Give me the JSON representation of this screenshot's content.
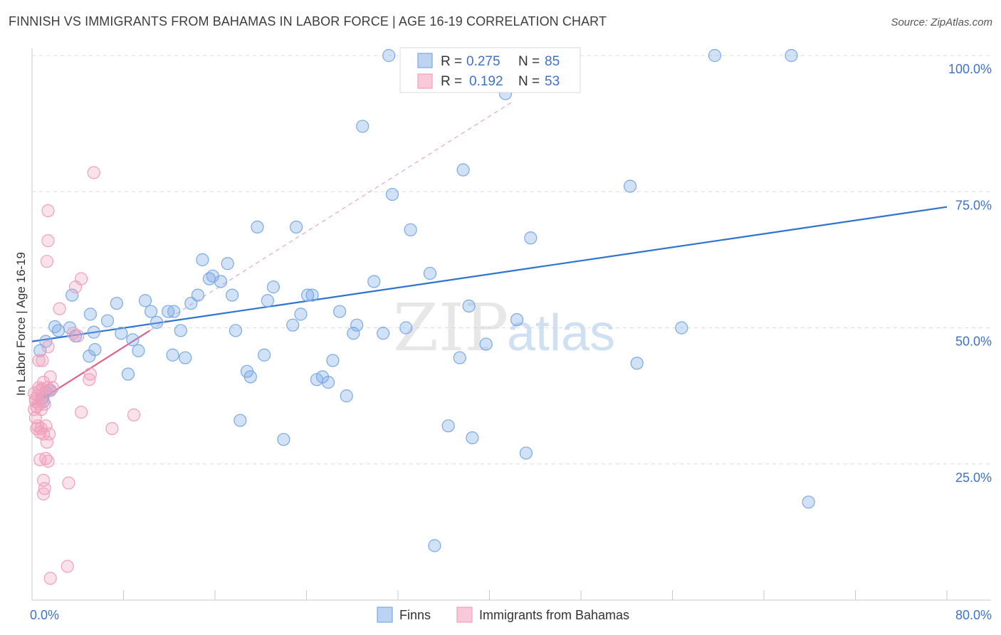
{
  "title": "FINNISH VS IMMIGRANTS FROM BAHAMAS IN LABOR FORCE | AGE 16-19 CORRELATION CHART",
  "source": "Source: ZipAtlas.com",
  "watermark": {
    "zip": "ZIP",
    "atlas": "atlas"
  },
  "colors": {
    "finns": "#7aaae6",
    "bahamas": "#f0a0bb",
    "finns_line": "#2f73d0",
    "bahamas_line": "#e0608a",
    "tick": "#3f72c6"
  },
  "legend": {
    "rows": [
      {
        "r_label": "R =",
        "r_value": "0.275",
        "n_label": "N =",
        "n_value": "85"
      },
      {
        "r_label": "R =",
        "r_value": "0.192",
        "n_label": "N =",
        "n_value": "53"
      }
    ]
  },
  "chart_data": {
    "type": "scatter",
    "xlabel": "",
    "ylabel": "In Labor Force | Age 16-19",
    "xlim": [
      0,
      80
    ],
    "ylim": [
      0,
      105
    ],
    "x_tick_labels": [
      "0.0%",
      "80.0%"
    ],
    "y_ticks": [
      25,
      50,
      75,
      100
    ],
    "y_tick_labels": [
      "25.0%",
      "50.0%",
      "75.0%",
      "100.0%"
    ],
    "grid": true,
    "legend_position": "top-center",
    "series": [
      {
        "name": "Finns",
        "r": 0.275,
        "n": 85,
        "trend": {
          "x": [
            0,
            80
          ],
          "y": [
            47.5,
            72.2
          ]
        },
        "points": [
          [
            0.7,
            45.8
          ],
          [
            1.2,
            47.5
          ],
          [
            2.0,
            50.2
          ],
          [
            2.3,
            49.5
          ],
          [
            3.3,
            50.0
          ],
          [
            3.5,
            56.0
          ],
          [
            3.8,
            48.5
          ],
          [
            5.1,
            52.5
          ],
          [
            5.4,
            49.2
          ],
          [
            6.6,
            51.3
          ],
          [
            5.0,
            44.8
          ],
          [
            5.5,
            46.0
          ],
          [
            7.4,
            54.5
          ],
          [
            7.8,
            49.0
          ],
          [
            8.4,
            41.5
          ],
          [
            8.8,
            47.8
          ],
          [
            9.3,
            45.8
          ],
          [
            9.9,
            55.0
          ],
          [
            10.4,
            53.0
          ],
          [
            10.9,
            51.0
          ],
          [
            11.9,
            53.0
          ],
          [
            12.4,
            53.0
          ],
          [
            12.3,
            45.0
          ],
          [
            13.0,
            49.5
          ],
          [
            13.4,
            44.5
          ],
          [
            13.9,
            54.5
          ],
          [
            14.5,
            56.0
          ],
          [
            14.9,
            62.5
          ],
          [
            15.5,
            59.0
          ],
          [
            15.8,
            59.5
          ],
          [
            16.5,
            58.5
          ],
          [
            17.1,
            61.8
          ],
          [
            17.5,
            56.0
          ],
          [
            17.8,
            49.5
          ],
          [
            18.2,
            33.0
          ],
          [
            18.8,
            42.0
          ],
          [
            19.1,
            41.0
          ],
          [
            19.7,
            68.5
          ],
          [
            20.3,
            45.0
          ],
          [
            20.6,
            55.0
          ],
          [
            21.1,
            57.5
          ],
          [
            22.0,
            29.5
          ],
          [
            22.8,
            50.5
          ],
          [
            23.1,
            68.5
          ],
          [
            23.5,
            52.5
          ],
          [
            24.1,
            56.0
          ],
          [
            24.5,
            56.0
          ],
          [
            24.9,
            40.5
          ],
          [
            25.4,
            41.0
          ],
          [
            25.9,
            40.0
          ],
          [
            26.3,
            44.0
          ],
          [
            26.9,
            53.0
          ],
          [
            27.5,
            37.5
          ],
          [
            28.1,
            49.0
          ],
          [
            28.4,
            50.5
          ],
          [
            28.9,
            87.0
          ],
          [
            29.9,
            58.5
          ],
          [
            30.7,
            49.0
          ],
          [
            31.2,
            100.0
          ],
          [
            31.5,
            74.5
          ],
          [
            32.7,
            50.0
          ],
          [
            33.1,
            68.0
          ],
          [
            34.8,
            60.0
          ],
          [
            35.2,
            10.0
          ],
          [
            36.4,
            32.0
          ],
          [
            37.4,
            44.5
          ],
          [
            37.7,
            79.0
          ],
          [
            38.2,
            54.0
          ],
          [
            38.5,
            29.8
          ],
          [
            39.7,
            47.0
          ],
          [
            40.4,
            100.0
          ],
          [
            41.4,
            93.0
          ],
          [
            42.4,
            51.5
          ],
          [
            43.2,
            27.0
          ],
          [
            43.6,
            66.5
          ],
          [
            52.3,
            76.0
          ],
          [
            52.9,
            43.5
          ],
          [
            56.8,
            50.0
          ],
          [
            59.7,
            100.0
          ],
          [
            66.4,
            100.0
          ],
          [
            67.9,
            18.0
          ],
          [
            1.0,
            36.5
          ],
          [
            1.6,
            38.5
          ],
          [
            0.9,
            37.0
          ],
          [
            1.2,
            38.2
          ]
        ]
      },
      {
        "name": "Immigrants from Bahamas",
        "r": 0.192,
        "n": 53,
        "trend": {
          "x": [
            0,
            10.3
          ],
          "y": [
            35.8,
            49.5
          ]
        },
        "trend_extended": {
          "x": [
            10.3,
            42.0
          ],
          "y": [
            49.5,
            91.5
          ]
        },
        "points": [
          [
            0.2,
            38.0
          ],
          [
            0.3,
            36.5
          ],
          [
            0.4,
            35.5
          ],
          [
            0.5,
            37.5
          ],
          [
            0.6,
            39.0
          ],
          [
            0.7,
            38.5
          ],
          [
            0.8,
            37.0
          ],
          [
            0.9,
            38.8
          ],
          [
            1.0,
            40.0
          ],
          [
            1.1,
            36.0
          ],
          [
            0.3,
            33.5
          ],
          [
            0.4,
            31.5
          ],
          [
            0.5,
            32.0
          ],
          [
            0.7,
            30.8
          ],
          [
            0.8,
            31.5
          ],
          [
            1.0,
            30.5
          ],
          [
            1.2,
            32.0
          ],
          [
            1.3,
            29.0
          ],
          [
            1.5,
            30.5
          ],
          [
            0.8,
            35.0
          ],
          [
            0.6,
            44.0
          ],
          [
            0.9,
            44.0
          ],
          [
            1.4,
            46.5
          ],
          [
            1.6,
            41.0
          ],
          [
            1.3,
            39.0
          ],
          [
            1.5,
            38.5
          ],
          [
            0.7,
            25.8
          ],
          [
            1.2,
            26.0
          ],
          [
            1.4,
            25.5
          ],
          [
            1.0,
            22.0
          ],
          [
            1.1,
            20.5
          ],
          [
            1.0,
            19.5
          ],
          [
            3.2,
            21.5
          ],
          [
            1.6,
            4.0
          ],
          [
            3.1,
            6.2
          ],
          [
            1.4,
            71.5
          ],
          [
            1.4,
            66.0
          ],
          [
            1.3,
            62.2
          ],
          [
            2.4,
            53.5
          ],
          [
            3.8,
            57.5
          ],
          [
            4.3,
            59.0
          ],
          [
            5.4,
            78.5
          ],
          [
            3.6,
            49.0
          ],
          [
            4.0,
            48.5
          ],
          [
            5.1,
            41.5
          ],
          [
            5.0,
            40.5
          ],
          [
            4.3,
            34.5
          ],
          [
            7.0,
            31.5
          ],
          [
            8.9,
            34.0
          ],
          [
            0.2,
            35.0
          ],
          [
            0.3,
            37.0
          ],
          [
            1.8,
            39.0
          ],
          [
            0.6,
            36.0
          ]
        ]
      }
    ]
  },
  "bottom_legend": {
    "finns": "Finns",
    "bahamas": "Immigrants from Bahamas"
  }
}
